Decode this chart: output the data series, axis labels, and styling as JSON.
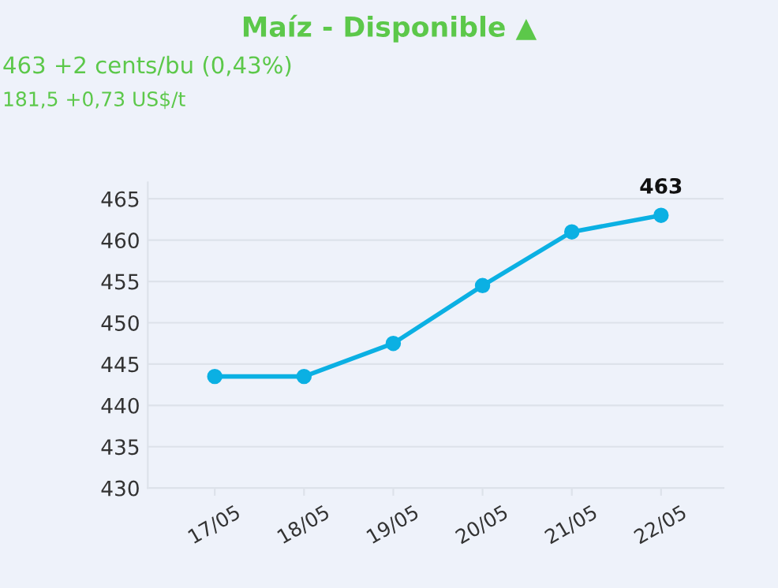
{
  "chart_data": {
    "type": "line",
    "title": "Maíz - Disponible ▲",
    "subtitle": "463 +2 cents/bu (0,43%)",
    "annotations": [
      "181,5 +0,73 US$/t"
    ],
    "categories": [
      "17/05",
      "18/05",
      "19/05",
      "20/05",
      "21/05",
      "22/05"
    ],
    "series": [
      {
        "color": "#0bb0e3",
        "values": [
          443.5,
          443.5,
          447.5,
          454.5,
          461,
          463
        ],
        "value_labels": [
          null,
          null,
          null,
          null,
          null,
          "463"
        ]
      }
    ],
    "ylim": [
      430,
      467
    ],
    "yticks": [
      430,
      435,
      440,
      445,
      450,
      455,
      460,
      465
    ],
    "grid": "y",
    "marker": "circle",
    "line_style": "solid"
  }
}
